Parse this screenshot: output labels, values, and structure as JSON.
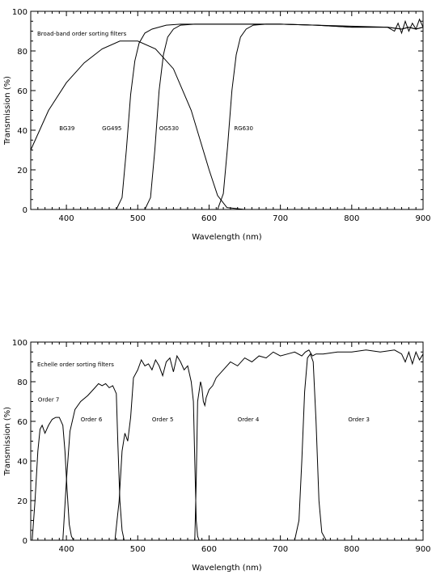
{
  "chart_data": [
    {
      "type": "line",
      "annotation": "Broad-band order sorting filters",
      "xlabel": "Wavelength (nm)",
      "ylabel": "Transmission (%)",
      "xlim": [
        350,
        900
      ],
      "ylim": [
        0,
        100
      ],
      "x_ticks": [
        400,
        500,
        600,
        700,
        800,
        900
      ],
      "y_ticks": [
        0,
        20,
        40,
        60,
        80,
        100
      ],
      "grid": false,
      "series": [
        {
          "name": "BG39",
          "label_at": [
            390,
            40
          ],
          "x": [
            350,
            375,
            400,
            425,
            450,
            475,
            500,
            525,
            550,
            575,
            600,
            612,
            625,
            650
          ],
          "y": [
            30,
            50,
            64,
            74,
            81,
            85,
            85,
            81,
            71,
            50,
            20,
            7,
            1,
            0
          ]
        },
        {
          "name": "GG495",
          "label_at": [
            450,
            40
          ],
          "x": [
            470,
            478,
            484,
            490,
            496,
            502,
            510,
            520,
            540,
            560,
            600,
            650,
            700,
            750,
            800,
            850,
            870,
            880,
            890,
            900
          ],
          "y": [
            0,
            6,
            30,
            58,
            75,
            84,
            89,
            91,
            93,
            93.5,
            93.5,
            93.5,
            93.5,
            93,
            92,
            92,
            91,
            92,
            91,
            92
          ]
        },
        {
          "name": "OG530",
          "label_at": [
            530,
            40
          ],
          "x": [
            510,
            518,
            524,
            530,
            536,
            542,
            550,
            560,
            580,
            600,
            650,
            700,
            750,
            800,
            850,
            870,
            880,
            890,
            900
          ],
          "y": [
            0,
            6,
            30,
            60,
            78,
            87,
            91,
            93,
            93.5,
            93.5,
            93.5,
            93.5,
            93,
            92,
            92,
            91,
            92,
            91,
            92
          ]
        },
        {
          "name": "RG630",
          "label_at": [
            635,
            40
          ],
          "x": [
            612,
            620,
            626,
            632,
            638,
            644,
            652,
            662,
            680,
            700,
            750,
            800,
            850,
            860,
            865,
            870,
            875,
            880,
            885,
            890,
            895,
            900
          ],
          "y": [
            0,
            8,
            32,
            60,
            78,
            87,
            91,
            93,
            93.5,
            93.5,
            93,
            92.5,
            92,
            90,
            94,
            89,
            95,
            90,
            94,
            91,
            96,
            92
          ]
        }
      ]
    },
    {
      "type": "line",
      "annotation": "Echelle order sorting filters",
      "xlabel": "Wavelength (nm)",
      "ylabel": "Transmission (%)",
      "xlim": [
        350,
        900
      ],
      "ylim": [
        0,
        100
      ],
      "x_ticks": [
        400,
        500,
        600,
        700,
        800,
        900
      ],
      "y_ticks": [
        0,
        20,
        40,
        60,
        80,
        100
      ],
      "grid": false,
      "series": [
        {
          "name": "Order 7",
          "label_at": [
            360,
            70
          ],
          "x": [
            352,
            356,
            360,
            363,
            366,
            370,
            375,
            380,
            385,
            390,
            395,
            398,
            401,
            404,
            407,
            410
          ],
          "y": [
            0,
            20,
            45,
            56,
            58,
            54,
            58,
            61,
            62,
            62,
            58,
            45,
            25,
            8,
            2,
            0
          ]
        },
        {
          "name": "Order 6",
          "label_at": [
            420,
            60
          ],
          "x": [
            395,
            400,
            405,
            412,
            420,
            430,
            440,
            445,
            450,
            455,
            460,
            465,
            470,
            472,
            475,
            478,
            481
          ],
          "y": [
            0,
            30,
            55,
            66,
            70,
            73,
            77,
            79,
            78,
            79,
            77,
            78,
            74,
            50,
            20,
            5,
            0
          ]
        },
        {
          "name": "Order 5",
          "label_at": [
            520,
            60
          ],
          "x": [
            468,
            474,
            478,
            482,
            486,
            490,
            494,
            500,
            505,
            510,
            515,
            520,
            525,
            530,
            535,
            540,
            545,
            550,
            555,
            560,
            565,
            570,
            575,
            578,
            580,
            582,
            584,
            586
          ],
          "y": [
            0,
            20,
            45,
            54,
            50,
            62,
            82,
            86,
            91,
            88,
            89,
            86,
            91,
            88,
            83,
            90,
            92,
            85,
            93,
            90,
            86,
            88,
            80,
            70,
            40,
            10,
            2,
            0
          ]
        },
        {
          "name": "Order 4",
          "label_at": [
            640,
            60
          ],
          "x": [
            580,
            582,
            584,
            586,
            588,
            590,
            592,
            594,
            596,
            600,
            605,
            610,
            620,
            630,
            640,
            650,
            660,
            670,
            680,
            690,
            700,
            710,
            720,
            730,
            735,
            740,
            745,
            750,
            760,
            780,
            800,
            820,
            840,
            860,
            870,
            875,
            880,
            885,
            890,
            895,
            900
          ],
          "y": [
            0,
            30,
            70,
            75,
            80,
            77,
            70,
            68,
            72,
            76,
            78,
            82,
            86,
            90,
            88,
            92,
            90,
            93,
            92,
            95,
            93,
            94,
            95,
            93,
            95,
            96,
            93,
            94,
            94,
            95,
            95,
            96,
            95,
            96,
            94,
            90,
            95,
            89,
            95,
            91,
            94
          ]
        },
        {
          "name": "Order 3",
          "label_at": [
            795,
            60
          ],
          "x": [
            720,
            726,
            730,
            734,
            738,
            742,
            746,
            750,
            754,
            758,
            764
          ],
          "y": [
            0,
            10,
            40,
            75,
            92,
            94,
            90,
            60,
            20,
            4,
            0
          ]
        }
      ]
    }
  ]
}
